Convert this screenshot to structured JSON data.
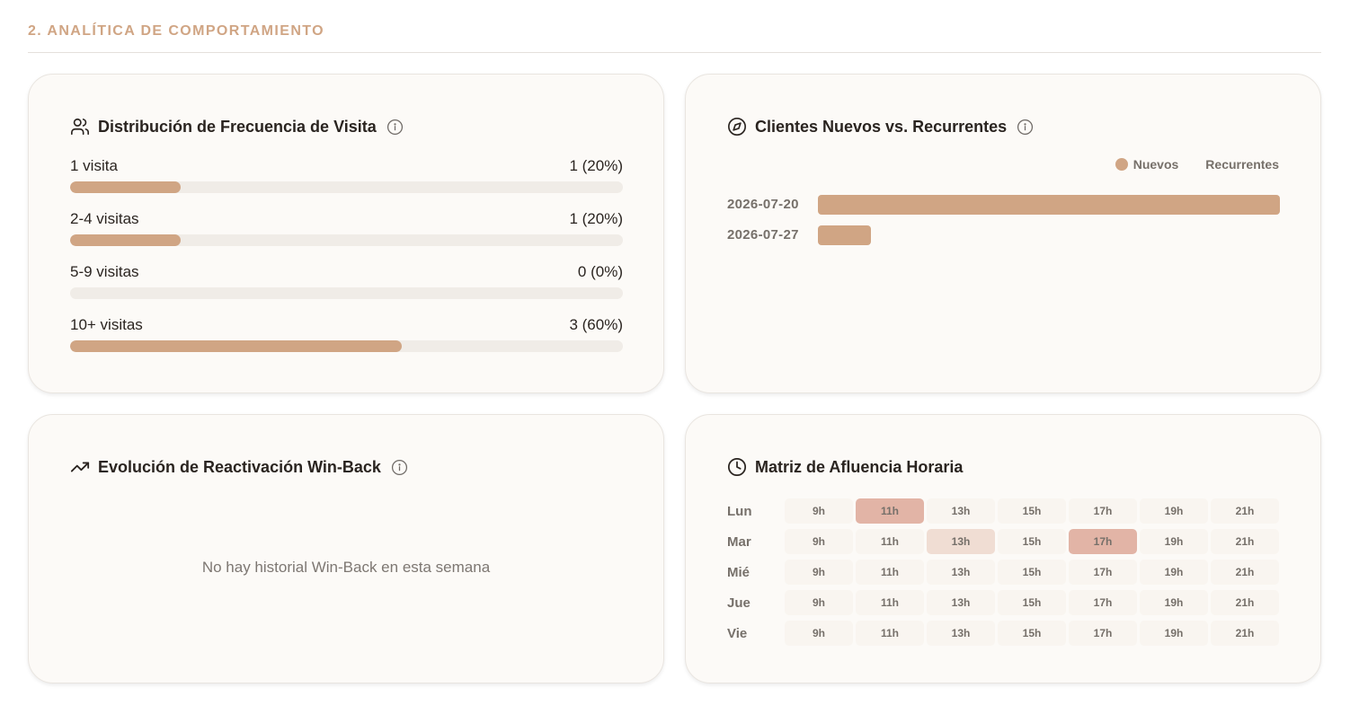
{
  "section": {
    "title": "2. ANALÍTICA DE COMPORTAMIENTO"
  },
  "colors": {
    "accent": "#d0a584",
    "heat_high": "#e2b4a6",
    "heat_mid": "#f0ddd3",
    "heat_low": "#f9f5f0"
  },
  "frequency": {
    "title": "Distribución de Frecuencia de Visita",
    "icon": "users-icon",
    "rows": [
      {
        "label": "1 visita",
        "value": "1 (20%)",
        "fraction": 0.2
      },
      {
        "label": "2-4 visitas",
        "value": "1 (20%)",
        "fraction": 0.2
      },
      {
        "label": "5-9 visitas",
        "value": "0 (0%)",
        "fraction": 0.0
      },
      {
        "label": "10+ visitas",
        "value": "3 (60%)",
        "fraction": 0.6
      }
    ]
  },
  "nuevos": {
    "title": "Clientes Nuevos vs. Recurrentes",
    "icon": "compass-icon",
    "legend": {
      "nuevos": "Nuevos",
      "recurrentes": "Recurrentes"
    },
    "chart_data": {
      "type": "bar",
      "categories": [
        "2026-07-20",
        "2026-07-27"
      ],
      "series": [
        {
          "name": "Nuevos",
          "values": [
            1.0,
            0.115
          ]
        },
        {
          "name": "Recurrentes",
          "values": [
            0,
            0
          ]
        }
      ]
    }
  },
  "winback": {
    "title": "Evolución de Reactivación Win-Back",
    "icon": "trending-up-icon",
    "empty_message": "No hay historial Win-Back en esta semana"
  },
  "matrix": {
    "title": "Matriz de Afluencia Horaria",
    "icon": "clock-icon",
    "days": [
      "Lun",
      "Mar",
      "Mié",
      "Jue",
      "Vie"
    ],
    "hours": [
      "9h",
      "11h",
      "13h",
      "15h",
      "17h",
      "19h",
      "21h"
    ],
    "levels": [
      [
        0,
        2,
        0,
        0,
        0,
        0,
        0
      ],
      [
        0,
        0,
        1,
        0,
        2,
        0,
        0
      ],
      [
        0,
        0,
        0,
        0,
        0,
        0,
        0
      ],
      [
        0,
        0,
        0,
        0,
        0,
        0,
        0
      ],
      [
        0,
        0,
        0,
        0,
        0,
        0,
        0
      ]
    ]
  }
}
